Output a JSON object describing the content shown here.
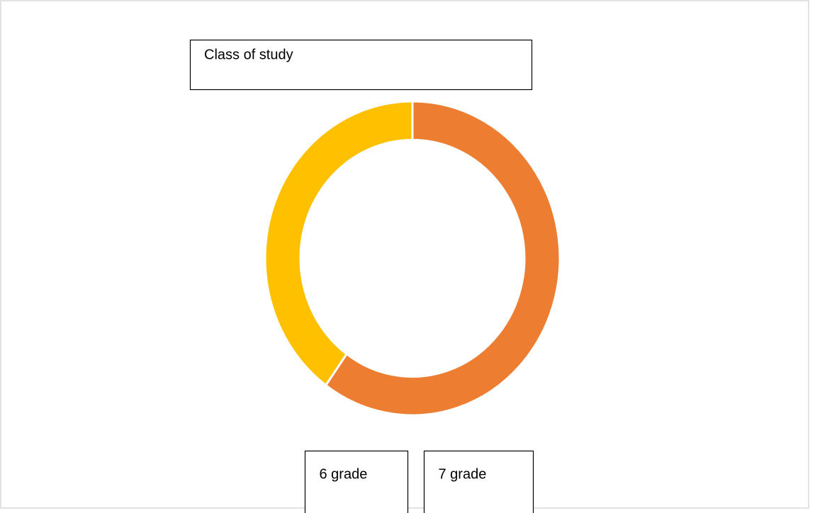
{
  "chart_data": {
    "type": "donut",
    "title": "Class of study",
    "categories": [
      "6 grade",
      "7 grade"
    ],
    "values": [
      60,
      40
    ],
    "colors": [
      "#ed7d31",
      "#ffc000"
    ]
  }
}
